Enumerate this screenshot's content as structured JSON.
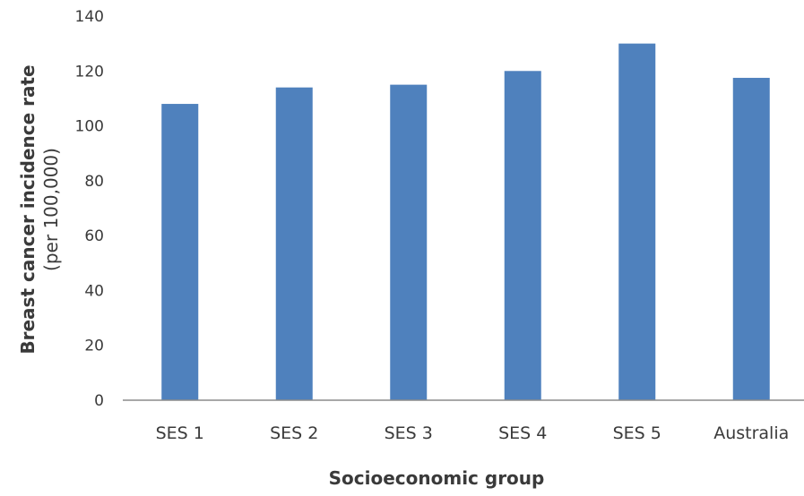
{
  "chart_data": {
    "type": "bar",
    "categories": [
      "SES 1",
      "SES 2",
      "SES 3",
      "SES 4",
      "SES 5",
      "Australia"
    ],
    "values": [
      108,
      114,
      115,
      120,
      130,
      117.5
    ],
    "xlabel": "Socioeconomic group",
    "ylabel": "Breast cancer incidence rate",
    "ylabel_sub": "(per 100,000)",
    "ylim": [
      0,
      140
    ],
    "yticks": [
      0,
      20,
      40,
      60,
      80,
      100,
      120,
      140
    ],
    "ytick_labels": [
      "0",
      "20",
      "40",
      "60",
      "80",
      "100",
      "120",
      "140"
    ],
    "grid": false,
    "legend": "none",
    "colors": {
      "bar": "#4f81bd",
      "axis": "#8c8c8c"
    }
  }
}
